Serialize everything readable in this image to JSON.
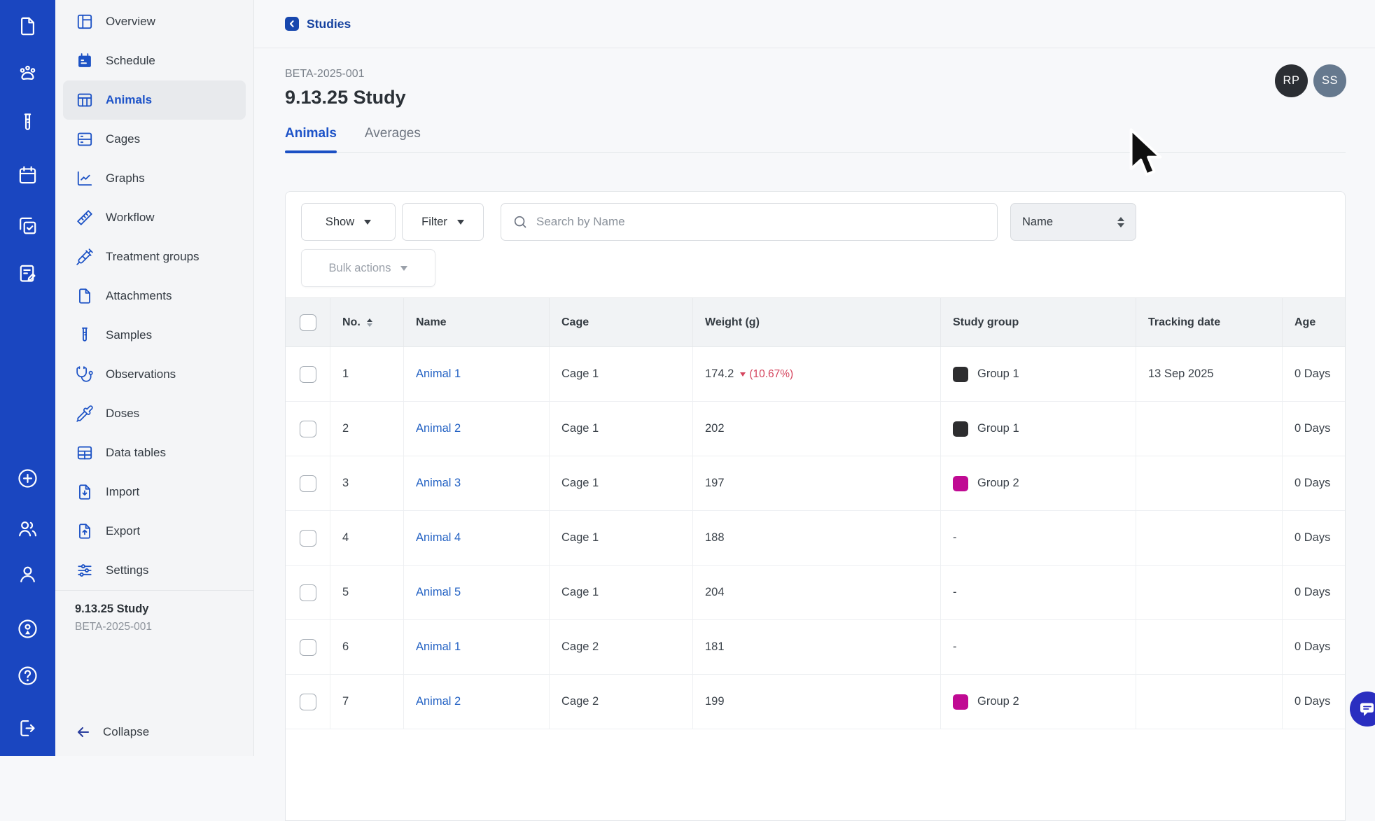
{
  "rail": {
    "icons": [
      "document",
      "paw",
      "test-tube",
      "calendar",
      "tasks",
      "notes",
      "add-circle",
      "team",
      "user",
      "presenter",
      "help",
      "logout"
    ]
  },
  "sidebar": {
    "items": [
      {
        "label": "Overview",
        "icon": "panels",
        "active": false
      },
      {
        "label": "Schedule",
        "icon": "calendar-filled",
        "active": false
      },
      {
        "label": "Animals",
        "icon": "table-columns",
        "active": true
      },
      {
        "label": "Cages",
        "icon": "rows",
        "active": false
      },
      {
        "label": "Graphs",
        "icon": "chart",
        "active": false
      },
      {
        "label": "Workflow",
        "icon": "ruler",
        "active": false
      },
      {
        "label": "Treatment groups",
        "icon": "syringe",
        "active": false
      },
      {
        "label": "Attachments",
        "icon": "file",
        "active": false
      },
      {
        "label": "Samples",
        "icon": "test-tube",
        "active": false
      },
      {
        "label": "Observations",
        "icon": "stethoscope",
        "active": false
      },
      {
        "label": "Doses",
        "icon": "pipette",
        "active": false
      },
      {
        "label": "Data tables",
        "icon": "table",
        "active": false
      },
      {
        "label": "Import",
        "icon": "file-down",
        "active": false
      },
      {
        "label": "Export",
        "icon": "file-up",
        "active": false
      },
      {
        "label": "Settings",
        "icon": "sliders",
        "active": false
      }
    ],
    "footer": {
      "title": "9.13.25 Study",
      "code": "BETA-2025-001"
    },
    "collapse_label": "Collapse"
  },
  "header": {
    "breadcrumb": "Studies",
    "study_code": "BETA-2025-001",
    "study_title": "9.13.25 Study",
    "avatars": [
      {
        "initials": "RP",
        "color": "#2b2e33"
      },
      {
        "initials": "SS",
        "color": "#66798e"
      }
    ]
  },
  "tabs": [
    {
      "label": "Animals",
      "active": true
    },
    {
      "label": "Averages",
      "active": false
    }
  ],
  "toolbar": {
    "show_label": "Show",
    "filter_label": "Filter",
    "search_placeholder": "Search by Name",
    "search_value": "",
    "sort_label": "Name",
    "bulk_actions_label": "Bulk actions"
  },
  "table": {
    "columns": [
      "No.",
      "Name",
      "Cage",
      "Weight (g)",
      "Study group",
      "Tracking date",
      "Age"
    ],
    "rows": [
      {
        "no": "1",
        "name": "Animal 1",
        "cage": "Cage 1",
        "weight": "174.2",
        "weight_delta": {
          "direction": "down",
          "text": "(10.67%)"
        },
        "group": "Group 1",
        "group_color": "#2d2d2f",
        "tracking_date": "13 Sep 2025",
        "age": "0 Days"
      },
      {
        "no": "2",
        "name": "Animal 2",
        "cage": "Cage 1",
        "weight": "202",
        "weight_delta": null,
        "group": "Group 1",
        "group_color": "#2d2d2f",
        "tracking_date": "",
        "age": "0 Days"
      },
      {
        "no": "3",
        "name": "Animal 3",
        "cage": "Cage 1",
        "weight": "197",
        "weight_delta": null,
        "group": "Group 2",
        "group_color": "#c00a93",
        "tracking_date": "",
        "age": "0 Days"
      },
      {
        "no": "4",
        "name": "Animal 4",
        "cage": "Cage 1",
        "weight": "188",
        "weight_delta": null,
        "group": "-",
        "group_color": null,
        "tracking_date": "",
        "age": "0 Days"
      },
      {
        "no": "5",
        "name": "Animal 5",
        "cage": "Cage 1",
        "weight": "204",
        "weight_delta": null,
        "group": "-",
        "group_color": null,
        "tracking_date": "",
        "age": "0 Days"
      },
      {
        "no": "6",
        "name": "Animal 1",
        "cage": "Cage 2",
        "weight": "181",
        "weight_delta": null,
        "group": "-",
        "group_color": null,
        "tracking_date": "",
        "age": "0 Days"
      },
      {
        "no": "7",
        "name": "Animal 2",
        "cage": "Cage 2",
        "weight": "199",
        "weight_delta": null,
        "group": "Group 2",
        "group_color": "#c00a93",
        "tracking_date": "",
        "age": "0 Days"
      }
    ]
  },
  "colors": {
    "rail_blue": "#1a46c0",
    "accent_blue": "#1d53c8",
    "link_blue": "#2563c4",
    "negative_red": "#d5455e",
    "group1_chip": "#2d2d2f",
    "group2_chip": "#c00a93",
    "fab_indigo": "#2a2ec0"
  }
}
